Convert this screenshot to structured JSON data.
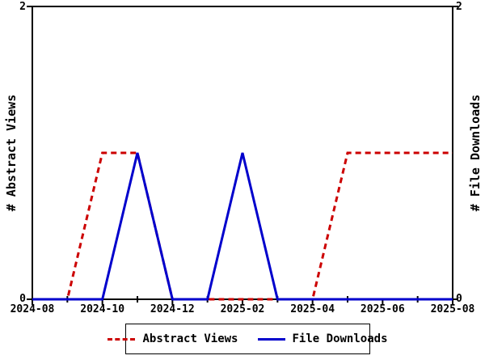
{
  "chart_data": {
    "type": "line",
    "x": [
      "2024-08",
      "2024-09",
      "2024-10",
      "2024-11",
      "2024-12",
      "2025-01",
      "2025-02",
      "2025-03",
      "2025-04",
      "2025-05",
      "2025-06",
      "2025-07",
      "2025-08"
    ],
    "series": [
      {
        "name": "Abstract Views",
        "values": [
          0,
          0,
          1,
          1,
          0,
          0,
          0,
          0,
          0,
          1,
          1,
          1,
          1
        ],
        "color": "#cc0000",
        "style": "dashed"
      },
      {
        "name": "File Downloads",
        "values": [
          0,
          0,
          0,
          1,
          0,
          0,
          1,
          0,
          0,
          0,
          0,
          0,
          0
        ],
        "color": "#0000cc",
        "style": "solid"
      }
    ],
    "ylabel_left": "# Abstract Views",
    "ylabel_right": "# File Downloads",
    "ylim": [
      0,
      2
    ],
    "y_tick_labels": [
      "0",
      "2"
    ],
    "x_tick_labels": [
      "2024-08",
      "2024-10",
      "2024-12",
      "2025-02",
      "2025-04",
      "2025-06",
      "2025-08"
    ],
    "legend": [
      "Abstract Views",
      "File Downloads"
    ],
    "legend_position": "bottom-center",
    "grid": false,
    "axis_color": "#000000"
  }
}
